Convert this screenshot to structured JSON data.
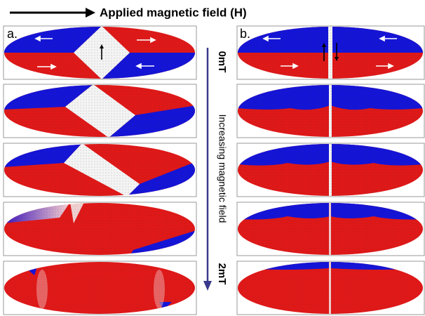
{
  "header": {
    "title": "Applied magnetic field (H)"
  },
  "panels": {
    "a": "a.",
    "b": "b."
  },
  "field_axis": {
    "start": "0mT",
    "label": "Increasing magnetic field",
    "end": "2mT"
  }
}
